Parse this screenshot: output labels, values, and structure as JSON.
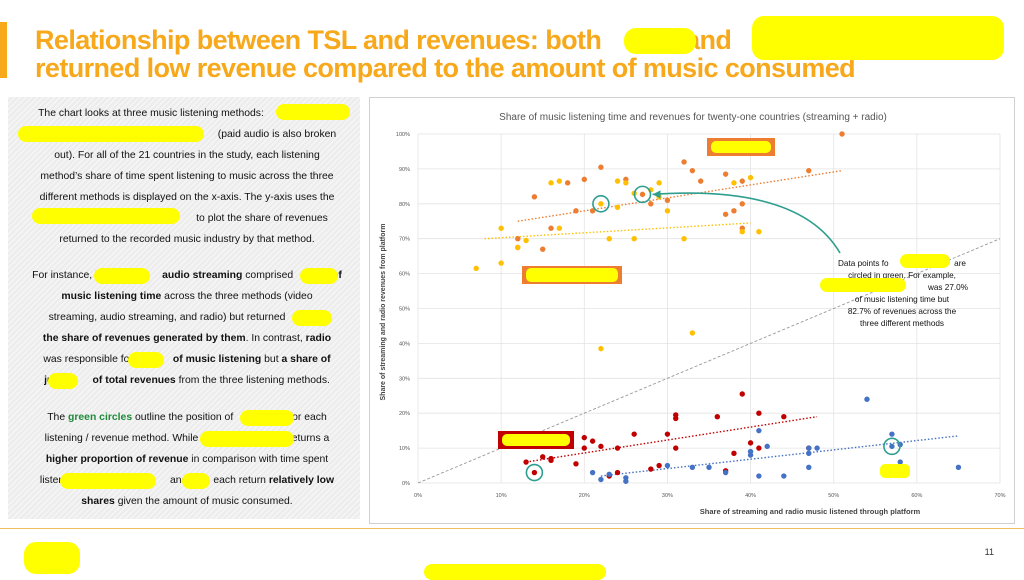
{
  "slide": {
    "title_line1": "Relationship between TSL and revenues: both",
    "title_line1_b": "and",
    "title_line2": "returned low revenue compared to the amount of music consumed",
    "page_number": "11",
    "accent_color": "#f7a81b"
  },
  "text_panel": {
    "p1": [
      "The chart looks at three music listening methods:",
      "(paid audio is also broken",
      "out). For all of the 21 countries in the study, each listening",
      "method’s share of time spent listening to music across the three",
      "different methods is displayed on the x-axis. The y-axis uses the",
      "to plot the share of revenues",
      "returned to the recorded music industry by that method."
    ],
    "p2": [
      "For instance, in",
      "audio streaming",
      "comprised",
      "of",
      "music listening time",
      "across the three methods (video",
      "streaming, audio streaming, and radio) but returned",
      "the share of revenues generated by them",
      ". In contrast,",
      "radio",
      "was responsible for",
      "of music listening",
      "but",
      "a share of",
      "just",
      "of total revenues",
      "from the three listening methods."
    ],
    "p3": [
      "The",
      "green circles",
      "outline the position of",
      "for each",
      "listening / revenue method. While",
      "returns a",
      "higher proportion of revenue",
      "in comparison with time spent",
      "listening",
      "and",
      "each return",
      "relatively low",
      "shares",
      "given the amount of music consumed."
    ]
  },
  "chart_data": {
    "type": "scatter",
    "title": "Share of music listening time and revenues for twenty-one countries (streaming + radio)",
    "xlabel": "Share of streaming and radio music listened through platform",
    "ylabel": "Share of streaming and radio revenues from platform",
    "xlim": [
      0,
      0.7
    ],
    "ylim": [
      0,
      1.0
    ],
    "x_ticks": [
      "0%",
      "10%",
      "20%",
      "30%",
      "40%",
      "50%",
      "60%",
      "70%"
    ],
    "y_ticks": [
      "0%",
      "10%",
      "20%",
      "30%",
      "40%",
      "50%",
      "60%",
      "70%",
      "80%",
      "90%",
      "100%"
    ],
    "grid": true,
    "annotation": [
      "Data points fo",
      "are",
      "circled in green. For example,",
      "was 27.0%",
      "of music listening time but",
      "82.7% of revenues across the",
      "three different methods"
    ],
    "colors": {
      "orange": "#ed7d31",
      "gold": "#ffc000",
      "red": "#c00000",
      "blue": "#4472c4",
      "highlight": "#2e9e8f"
    },
    "series": [
      {
        "color": "orange",
        "points": [
          [
            0.51,
            1.0
          ],
          [
            0.22,
            0.905
          ],
          [
            0.32,
            0.92
          ],
          [
            0.25,
            0.87
          ],
          [
            0.33,
            0.895
          ],
          [
            0.47,
            0.895
          ],
          [
            0.34,
            0.865
          ],
          [
            0.37,
            0.885
          ],
          [
            0.39,
            0.865
          ],
          [
            0.2,
            0.87
          ],
          [
            0.18,
            0.86
          ],
          [
            0.14,
            0.82
          ],
          [
            0.27,
            0.827
          ],
          [
            0.28,
            0.8
          ],
          [
            0.3,
            0.81
          ],
          [
            0.19,
            0.78
          ],
          [
            0.21,
            0.78
          ],
          [
            0.37,
            0.77
          ],
          [
            0.38,
            0.78
          ],
          [
            0.39,
            0.8
          ],
          [
            0.39,
            0.73
          ],
          [
            0.16,
            0.73
          ],
          [
            0.12,
            0.7
          ],
          [
            0.12,
            0.675
          ],
          [
            0.15,
            0.67
          ]
        ],
        "trend": [
          [
            0.12,
            0.75
          ],
          [
            0.51,
            0.895
          ]
        ]
      },
      {
        "color": "gold",
        "points": [
          [
            0.16,
            0.86
          ],
          [
            0.17,
            0.865
          ],
          [
            0.24,
            0.865
          ],
          [
            0.25,
            0.86
          ],
          [
            0.29,
            0.86
          ],
          [
            0.28,
            0.84
          ],
          [
            0.38,
            0.86
          ],
          [
            0.4,
            0.875
          ],
          [
            0.26,
            0.83
          ],
          [
            0.29,
            0.82
          ],
          [
            0.3,
            0.78
          ],
          [
            0.22,
            0.8
          ],
          [
            0.24,
            0.79
          ],
          [
            0.1,
            0.73
          ],
          [
            0.17,
            0.73
          ],
          [
            0.23,
            0.7
          ],
          [
            0.26,
            0.7
          ],
          [
            0.32,
            0.7
          ],
          [
            0.41,
            0.72
          ],
          [
            0.39,
            0.72
          ],
          [
            0.13,
            0.695
          ],
          [
            0.12,
            0.675
          ],
          [
            0.1,
            0.63
          ],
          [
            0.07,
            0.615
          ],
          [
            0.33,
            0.43
          ],
          [
            0.22,
            0.385
          ]
        ],
        "trend": [
          [
            0.08,
            0.7
          ],
          [
            0.4,
            0.745
          ]
        ]
      },
      {
        "color": "red",
        "points": [
          [
            0.39,
            0.255
          ],
          [
            0.31,
            0.195
          ],
          [
            0.31,
            0.185
          ],
          [
            0.36,
            0.19
          ],
          [
            0.41,
            0.2
          ],
          [
            0.44,
            0.19
          ],
          [
            0.2,
            0.13
          ],
          [
            0.21,
            0.12
          ],
          [
            0.2,
            0.1
          ],
          [
            0.22,
            0.105
          ],
          [
            0.18,
            0.115
          ],
          [
            0.24,
            0.1
          ],
          [
            0.26,
            0.14
          ],
          [
            0.3,
            0.14
          ],
          [
            0.31,
            0.1
          ],
          [
            0.4,
            0.115
          ],
          [
            0.38,
            0.085
          ],
          [
            0.41,
            0.1
          ],
          [
            0.47,
            0.1
          ],
          [
            0.15,
            0.075
          ],
          [
            0.16,
            0.065
          ],
          [
            0.13,
            0.06
          ],
          [
            0.14,
            0.03
          ],
          [
            0.19,
            0.055
          ],
          [
            0.23,
            0.02
          ],
          [
            0.24,
            0.03
          ],
          [
            0.28,
            0.04
          ],
          [
            0.29,
            0.05
          ],
          [
            0.37,
            0.035
          ],
          [
            0.16,
            0.07
          ]
        ],
        "trend": [
          [
            0.13,
            0.06
          ],
          [
            0.48,
            0.19
          ]
        ]
      },
      {
        "color": "blue",
        "points": [
          [
            0.54,
            0.24
          ],
          [
            0.41,
            0.15
          ],
          [
            0.42,
            0.105
          ],
          [
            0.4,
            0.09
          ],
          [
            0.4,
            0.08
          ],
          [
            0.47,
            0.085
          ],
          [
            0.47,
            0.1
          ],
          [
            0.48,
            0.1
          ],
          [
            0.57,
            0.14
          ],
          [
            0.57,
            0.105
          ],
          [
            0.58,
            0.11
          ],
          [
            0.58,
            0.06
          ],
          [
            0.65,
            0.045
          ],
          [
            0.47,
            0.045
          ],
          [
            0.35,
            0.045
          ],
          [
            0.33,
            0.045
          ],
          [
            0.3,
            0.05
          ],
          [
            0.37,
            0.03
          ],
          [
            0.41,
            0.02
          ],
          [
            0.44,
            0.02
          ],
          [
            0.21,
            0.03
          ],
          [
            0.23,
            0.025
          ],
          [
            0.22,
            0.01
          ],
          [
            0.25,
            0.005
          ],
          [
            0.25,
            0.015
          ]
        ],
        "trend": [
          [
            0.22,
            0.02
          ],
          [
            0.65,
            0.135
          ]
        ]
      }
    ],
    "diagonal": [
      [
        0.0,
        0.0
      ],
      [
        0.7,
        0.7
      ]
    ],
    "highlighted_points": [
      [
        0.22,
        0.8
      ],
      [
        0.27,
        0.827
      ],
      [
        0.14,
        0.03
      ],
      [
        0.57,
        0.105
      ]
    ]
  }
}
